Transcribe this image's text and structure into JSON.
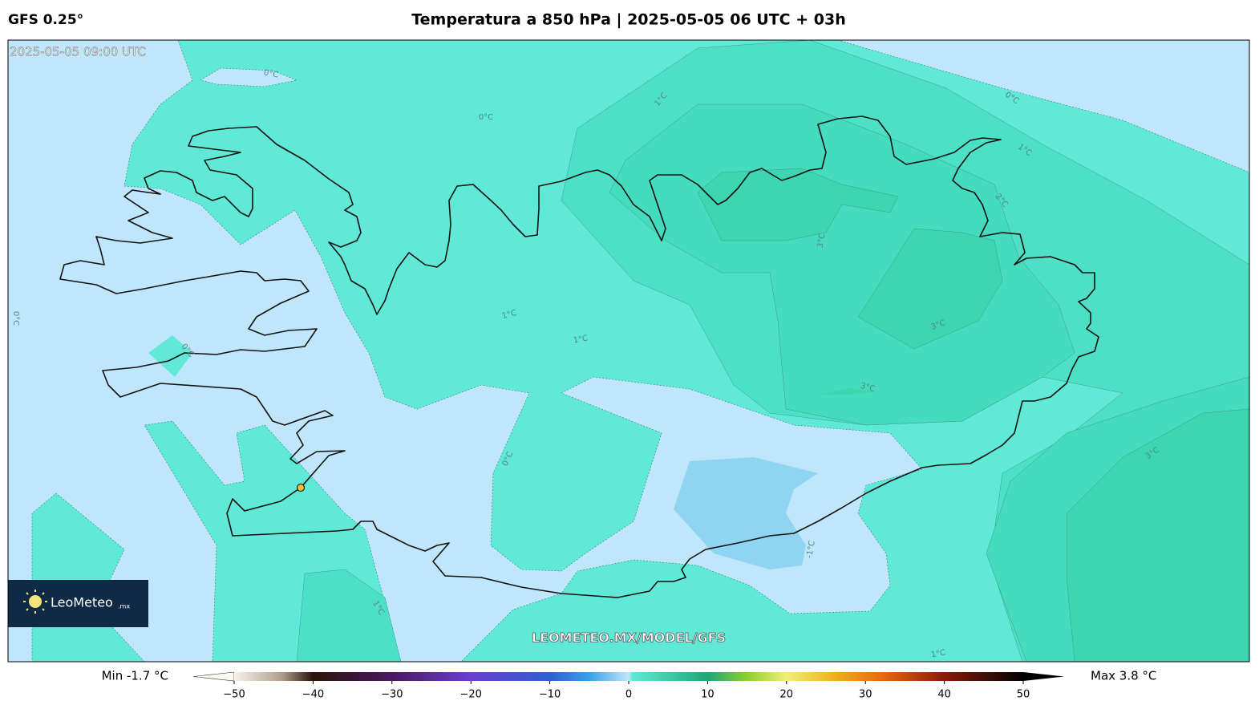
{
  "header": {
    "model": "GFS 0.25°",
    "title": "Temperatura a 850 hPa | 2025-05-05 06 UTC + 03h"
  },
  "map": {
    "valid_time": "2025-05-05 09:00 UTC",
    "watermark": "LEOMETEO.MX/MODEL/GFS",
    "logo": {
      "name": "LeoMeteo",
      "suffix": ".mx"
    },
    "contour_labels": [
      "0°C",
      "0°C",
      "1°C",
      "0°C",
      "1°C",
      "2°C",
      "3°C",
      "0°C",
      "0°C",
      "1°C",
      "1°C",
      "3°C",
      "3°C",
      "0°C",
      "3°C",
      "-1°C",
      "1°C",
      "1°C"
    ]
  },
  "colorbar": {
    "min_label": "Min -1.7 °C",
    "max_label": "Max 3.8 °C",
    "lim": [
      -50,
      50
    ],
    "ticks": [
      {
        "value": -50,
        "label": "−50"
      },
      {
        "value": -40,
        "label": "−40"
      },
      {
        "value": -30,
        "label": "−30"
      },
      {
        "value": -20,
        "label": "−20"
      },
      {
        "value": -10,
        "label": "−10"
      },
      0,
      10,
      20,
      30,
      40,
      50
    ]
  }
}
